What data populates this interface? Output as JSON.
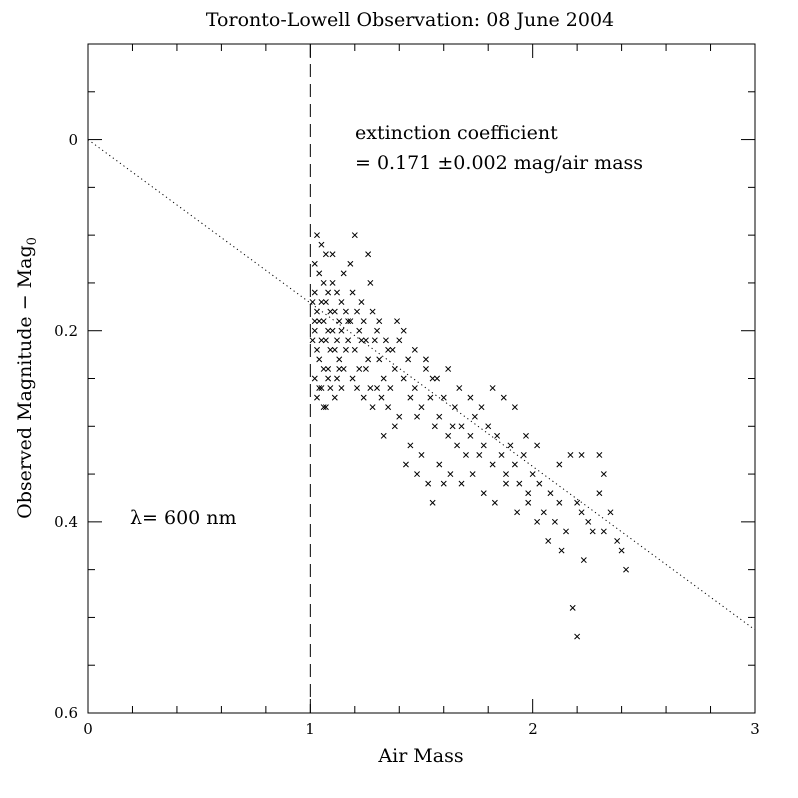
{
  "chart_data": {
    "type": "scatter",
    "title": "Toronto-Lowell Observation: 08 June 2004",
    "xlabel": "Air Mass",
    "ylabel": "Observed Magnitude − Mag",
    "ylabel_subscript": "0",
    "xlim": [
      0,
      3
    ],
    "ylim": [
      0.6,
      -0.1
    ],
    "y_inverted": true,
    "x_ticks": [
      "0",
      "1",
      "2",
      "3"
    ],
    "y_ticks": [
      "0",
      "0.2",
      "0.4",
      "0.6"
    ],
    "grid": false,
    "legend": "none",
    "annotations": {
      "extinction_line1": "extinction coefficient",
      "extinction_line2": "= 0.171 ±0.002 mag/air mass",
      "wavelength": "λ= 600 nm"
    },
    "fit_line": {
      "style": "dotted",
      "intercept": 0.0,
      "slope": 0.171,
      "x_range": [
        0,
        3
      ]
    },
    "reference_line": {
      "style": "dashed",
      "x": 1.0
    },
    "marker": "x",
    "points": [
      [
        1.03,
        0.1
      ],
      [
        1.05,
        0.11
      ],
      [
        1.07,
        0.12
      ],
      [
        1.02,
        0.13
      ],
      [
        1.04,
        0.14
      ],
      [
        1.06,
        0.15
      ],
      [
        1.08,
        0.16
      ],
      [
        1.02,
        0.16
      ],
      [
        1.05,
        0.17
      ],
      [
        1.07,
        0.17
      ],
      [
        1.03,
        0.18
      ],
      [
        1.09,
        0.18
      ],
      [
        1.04,
        0.19
      ],
      [
        1.06,
        0.19
      ],
      [
        1.08,
        0.2
      ],
      [
        1.02,
        0.2
      ],
      [
        1.05,
        0.21
      ],
      [
        1.07,
        0.21
      ],
      [
        1.03,
        0.22
      ],
      [
        1.09,
        0.22
      ],
      [
        1.04,
        0.23
      ],
      [
        1.06,
        0.24
      ],
      [
        1.02,
        0.25
      ],
      [
        1.08,
        0.25
      ],
      [
        1.05,
        0.26
      ],
      [
        1.03,
        0.27
      ],
      [
        1.07,
        0.28
      ],
      [
        1.1,
        0.15
      ],
      [
        1.12,
        0.16
      ],
      [
        1.11,
        0.18
      ],
      [
        1.13,
        0.19
      ],
      [
        1.1,
        0.2
      ],
      [
        1.12,
        0.21
      ],
      [
        1.14,
        0.17
      ],
      [
        1.11,
        0.22
      ],
      [
        1.13,
        0.23
      ],
      [
        1.15,
        0.14
      ],
      [
        1.16,
        0.18
      ],
      [
        1.14,
        0.2
      ],
      [
        1.17,
        0.21
      ],
      [
        1.15,
        0.24
      ],
      [
        1.1,
        0.12
      ],
      [
        1.18,
        0.13
      ],
      [
        1.2,
        0.1
      ],
      [
        1.19,
        0.16
      ],
      [
        1.21,
        0.18
      ],
      [
        1.18,
        0.19
      ],
      [
        1.22,
        0.2
      ],
      [
        1.2,
        0.22
      ],
      [
        1.23,
        0.17
      ],
      [
        1.24,
        0.19
      ],
      [
        1.25,
        0.21
      ],
      [
        1.22,
        0.24
      ],
      [
        1.26,
        0.12
      ],
      [
        1.27,
        0.15
      ],
      [
        1.28,
        0.18
      ],
      [
        1.29,
        0.21
      ],
      [
        1.3,
        0.2
      ],
      [
        1.31,
        0.23
      ],
      [
        1.33,
        0.25
      ],
      [
        1.35,
        0.22
      ],
      [
        1.32,
        0.27
      ],
      [
        1.36,
        0.26
      ],
      [
        1.38,
        0.24
      ],
      [
        1.4,
        0.21
      ],
      [
        1.42,
        0.25
      ],
      [
        1.44,
        0.23
      ],
      [
        1.45,
        0.27
      ],
      [
        1.47,
        0.26
      ],
      [
        1.48,
        0.29
      ],
      [
        1.5,
        0.28
      ],
      [
        1.52,
        0.24
      ],
      [
        1.54,
        0.27
      ],
      [
        1.55,
        0.25
      ],
      [
        1.56,
        0.3
      ],
      [
        1.58,
        0.29
      ],
      [
        1.6,
        0.27
      ],
      [
        1.62,
        0.31
      ],
      [
        1.64,
        0.3
      ],
      [
        1.65,
        0.28
      ],
      [
        1.66,
        0.32
      ],
      [
        1.68,
        0.3
      ],
      [
        1.7,
        0.33
      ],
      [
        1.72,
        0.31
      ],
      [
        1.74,
        0.29
      ],
      [
        1.76,
        0.33
      ],
      [
        1.78,
        0.32
      ],
      [
        1.8,
        0.3
      ],
      [
        1.82,
        0.34
      ],
      [
        1.84,
        0.31
      ],
      [
        1.86,
        0.33
      ],
      [
        1.88,
        0.35
      ],
      [
        1.9,
        0.32
      ],
      [
        1.92,
        0.34
      ],
      [
        1.94,
        0.36
      ],
      [
        1.96,
        0.33
      ],
      [
        1.98,
        0.37
      ],
      [
        2.0,
        0.35
      ],
      [
        2.03,
        0.36
      ],
      [
        2.05,
        0.39
      ],
      [
        2.08,
        0.37
      ],
      [
        2.1,
        0.4
      ],
      [
        2.12,
        0.38
      ],
      [
        2.15,
        0.41
      ],
      [
        2.17,
        0.33
      ],
      [
        2.2,
        0.38
      ],
      [
        2.22,
        0.39
      ],
      [
        2.25,
        0.4
      ],
      [
        2.27,
        0.41
      ],
      [
        2.3,
        0.37
      ],
      [
        2.32,
        0.41
      ],
      [
        2.35,
        0.39
      ],
      [
        2.38,
        0.42
      ],
      [
        2.4,
        0.43
      ],
      [
        2.42,
        0.45
      ],
      [
        2.18,
        0.49
      ],
      [
        2.2,
        0.52
      ],
      [
        1.55,
        0.38
      ],
      [
        1.6,
        0.36
      ],
      [
        1.45,
        0.32
      ],
      [
        1.5,
        0.33
      ],
      [
        1.4,
        0.29
      ],
      [
        1.35,
        0.28
      ],
      [
        1.3,
        0.26
      ],
      [
        1.25,
        0.24
      ],
      [
        1.28,
        0.28
      ],
      [
        1.33,
        0.31
      ],
      [
        1.38,
        0.3
      ],
      [
        1.43,
        0.34
      ],
      [
        1.48,
        0.35
      ],
      [
        1.53,
        0.36
      ],
      [
        1.58,
        0.34
      ],
      [
        1.63,
        0.35
      ],
      [
        1.68,
        0.36
      ],
      [
        1.73,
        0.35
      ],
      [
        1.78,
        0.37
      ],
      [
        1.83,
        0.38
      ],
      [
        1.88,
        0.36
      ],
      [
        1.93,
        0.39
      ],
      [
        1.98,
        0.38
      ],
      [
        2.02,
        0.4
      ],
      [
        2.07,
        0.42
      ],
      [
        2.13,
        0.43
      ],
      [
        2.23,
        0.44
      ],
      [
        1.42,
        0.2
      ],
      [
        1.47,
        0.22
      ],
      [
        1.52,
        0.23
      ],
      [
        1.57,
        0.25
      ],
      [
        1.62,
        0.24
      ],
      [
        1.67,
        0.26
      ],
      [
        1.72,
        0.27
      ],
      [
        1.77,
        0.28
      ],
      [
        1.82,
        0.26
      ],
      [
        1.87,
        0.27
      ],
      [
        1.92,
        0.28
      ],
      [
        1.97,
        0.31
      ],
      [
        2.02,
        0.32
      ],
      [
        2.12,
        0.34
      ],
      [
        2.22,
        0.33
      ],
      [
        2.32,
        0.35
      ],
      [
        2.3,
        0.33
      ],
      [
        1.09,
        0.26
      ],
      [
        1.11,
        0.27
      ],
      [
        1.13,
        0.24
      ],
      [
        1.16,
        0.22
      ],
      [
        1.19,
        0.25
      ],
      [
        1.21,
        0.26
      ],
      [
        1.24,
        0.27
      ],
      [
        1.27,
        0.26
      ],
      [
        1.31,
        0.19
      ],
      [
        1.34,
        0.21
      ],
      [
        1.37,
        0.22
      ],
      [
        1.39,
        0.19
      ],
      [
        1.06,
        0.28
      ],
      [
        1.04,
        0.26
      ],
      [
        1.08,
        0.24
      ],
      [
        1.01,
        0.17
      ],
      [
        1.01,
        0.21
      ],
      [
        1.02,
        0.19
      ],
      [
        1.12,
        0.25
      ],
      [
        1.14,
        0.26
      ],
      [
        1.17,
        0.19
      ],
      [
        1.23,
        0.21
      ],
      [
        1.26,
        0.23
      ]
    ]
  }
}
